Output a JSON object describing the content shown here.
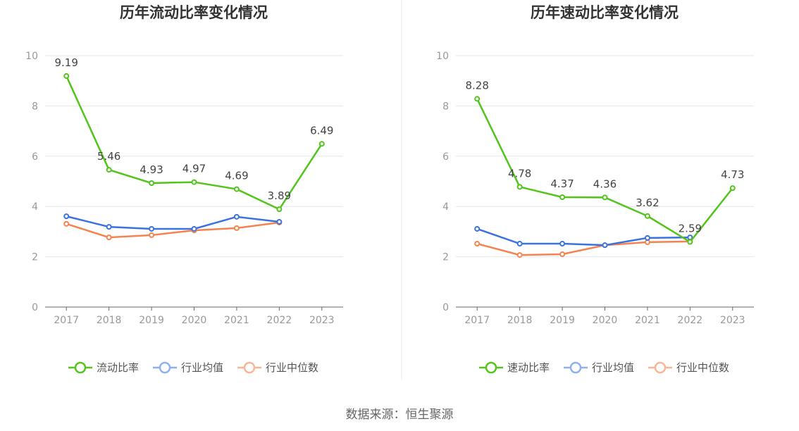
{
  "chart_data": [
    {
      "type": "line",
      "title": "历年流动比率变化情况",
      "categories": [
        "2017",
        "2018",
        "2019",
        "2020",
        "2021",
        "2022",
        "2023"
      ],
      "ylim": [
        0,
        10
      ],
      "yticks": [
        0,
        2,
        4,
        6,
        8,
        10
      ],
      "grid": true,
      "legend_placement": "bottom",
      "series": [
        {
          "name": "流动比率",
          "color": "#52c41a",
          "values": [
            9.19,
            5.46,
            4.93,
            4.97,
            4.69,
            3.89,
            6.49
          ],
          "labels": [
            "9.19",
            "5.46",
            "4.93",
            "4.97",
            "4.69",
            "3.89",
            "6.49"
          ]
        },
        {
          "name": "行业均值",
          "color": "#3a72e0",
          "values": [
            3.61,
            3.19,
            3.11,
            3.11,
            3.59,
            3.39,
            null
          ]
        },
        {
          "name": "行业中位数",
          "color": "#f5834f",
          "values": [
            3.31,
            2.77,
            2.86,
            3.05,
            3.14,
            3.36,
            null
          ]
        }
      ]
    },
    {
      "type": "line",
      "title": "历年速动比率变化情况",
      "categories": [
        "2017",
        "2018",
        "2019",
        "2020",
        "2021",
        "2022",
        "2023"
      ],
      "ylim": [
        0,
        10
      ],
      "yticks": [
        0,
        2,
        4,
        6,
        8,
        10
      ],
      "grid": true,
      "legend_placement": "bottom",
      "series": [
        {
          "name": "速动比率",
          "color": "#52c41a",
          "values": [
            8.28,
            4.78,
            4.37,
            4.36,
            3.62,
            2.59,
            4.73
          ],
          "labels": [
            "8.28",
            "4.78",
            "4.37",
            "4.36",
            "3.62",
            "2.59",
            "4.73"
          ]
        },
        {
          "name": "行业均值",
          "color": "#3a72e0",
          "values": [
            3.11,
            2.52,
            2.52,
            2.46,
            2.75,
            2.77,
            null
          ]
        },
        {
          "name": "行业中位数",
          "color": "#f5834f",
          "values": [
            2.52,
            2.07,
            2.1,
            2.46,
            2.58,
            2.61,
            null
          ]
        }
      ]
    }
  ],
  "source": "数据来源：恒生聚源"
}
